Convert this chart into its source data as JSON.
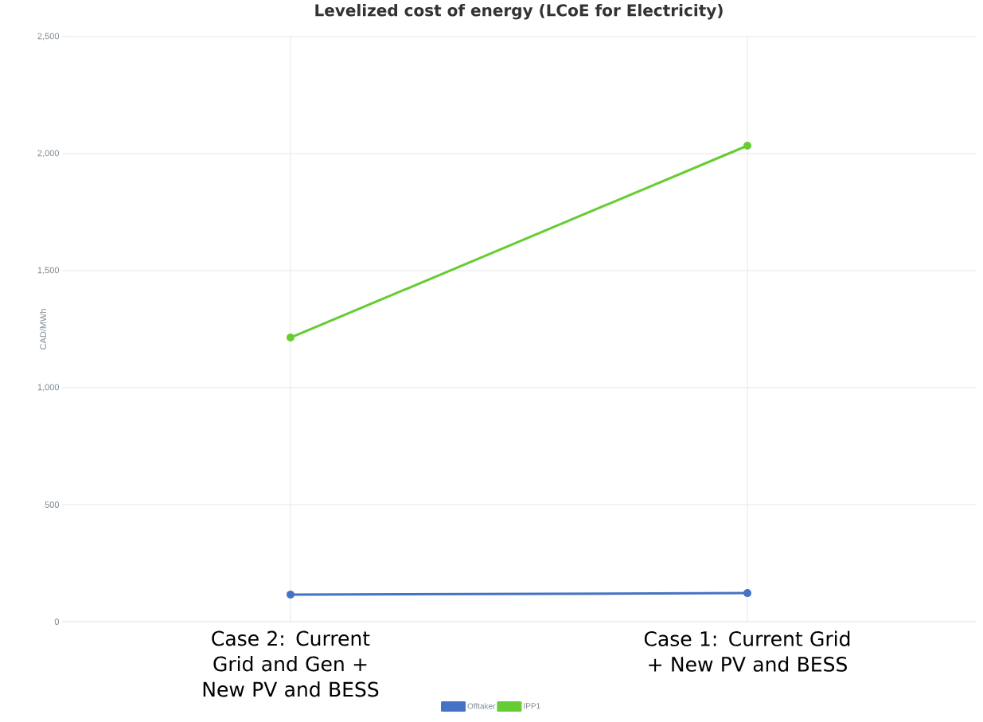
{
  "chart_data": {
    "type": "line",
    "title": "Levelized cost of energy (LCoE for Electricity)",
    "ylabel": "CAD/MWh",
    "categories": [
      "Case 2: Current Grid and Gen + New PV and BESS",
      "Case 1: Current Grid + New PV and BESS"
    ],
    "series": [
      {
        "name": "Offtaker",
        "color": "#4472c4",
        "values": [
          116,
          122
        ]
      },
      {
        "name": "IPP1",
        "color": "#66cc33",
        "values": [
          1214,
          2034
        ]
      }
    ],
    "ylim": [
      0,
      2500
    ],
    "yticks": [
      {
        "value": 0,
        "label": "0"
      },
      {
        "value": 500,
        "label": "500"
      },
      {
        "value": 1000,
        "label": "1,000"
      },
      {
        "value": 1500,
        "label": "1,500"
      },
      {
        "value": 2000,
        "label": "2,000"
      },
      {
        "value": 2500,
        "label": "2,500"
      }
    ],
    "grid": true,
    "legend": "bottom",
    "marker": "circle",
    "line_style": "solid"
  }
}
